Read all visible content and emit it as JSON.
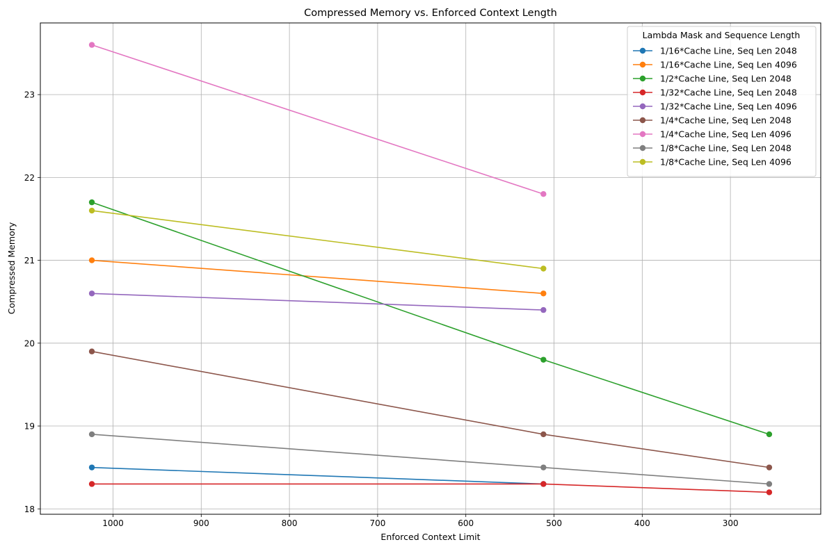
{
  "chart_data": {
    "type": "line",
    "title": "Compressed Memory vs. Enforced Context Length",
    "xlabel": "Enforced Context Limit",
    "ylabel": "Compressed Memory",
    "x_inverted": true,
    "xlim": [
      1082.4,
      197.6
    ],
    "ylim": [
      17.935,
      23.865
    ],
    "xticks": [
      1000,
      900,
      800,
      700,
      600,
      500,
      400,
      300
    ],
    "yticks": [
      18,
      19,
      20,
      21,
      22,
      23
    ],
    "grid": true,
    "legend": {
      "title": "Lambda Mask and Sequence Length",
      "position": "top-right"
    },
    "series": [
      {
        "name": "1/16*Cache Line, Seq Len 2048",
        "color": "#1f77b4",
        "x": [
          1024,
          512
        ],
        "y": [
          18.5,
          18.3
        ]
      },
      {
        "name": "1/16*Cache Line, Seq Len 4096",
        "color": "#ff7f0e",
        "x": [
          1024,
          512
        ],
        "y": [
          21.0,
          20.6
        ]
      },
      {
        "name": "1/2*Cache Line, Seq Len 2048",
        "color": "#2ca02c",
        "x": [
          1024,
          512,
          256
        ],
        "y": [
          21.7,
          19.8,
          18.9
        ]
      },
      {
        "name": "1/32*Cache Line, Seq Len 2048",
        "color": "#d62728",
        "x": [
          1024,
          512,
          256
        ],
        "y": [
          18.3,
          18.3,
          18.2
        ]
      },
      {
        "name": "1/32*Cache Line, Seq Len 4096",
        "color": "#9467bd",
        "x": [
          1024,
          512
        ],
        "y": [
          20.6,
          20.4
        ]
      },
      {
        "name": "1/4*Cache Line, Seq Len 2048",
        "color": "#8c564b",
        "x": [
          1024,
          512,
          256
        ],
        "y": [
          19.9,
          18.9,
          18.5
        ]
      },
      {
        "name": "1/4*Cache Line, Seq Len 4096",
        "color": "#e377c2",
        "x": [
          1024,
          512
        ],
        "y": [
          23.6,
          21.8
        ]
      },
      {
        "name": "1/8*Cache Line, Seq Len 2048",
        "color": "#7f7f7f",
        "x": [
          1024,
          512,
          256
        ],
        "y": [
          18.9,
          18.5,
          18.3
        ]
      },
      {
        "name": "1/8*Cache Line, Seq Len 4096",
        "color": "#bcbd22",
        "x": [
          1024,
          512
        ],
        "y": [
          21.6,
          20.9
        ]
      }
    ]
  }
}
